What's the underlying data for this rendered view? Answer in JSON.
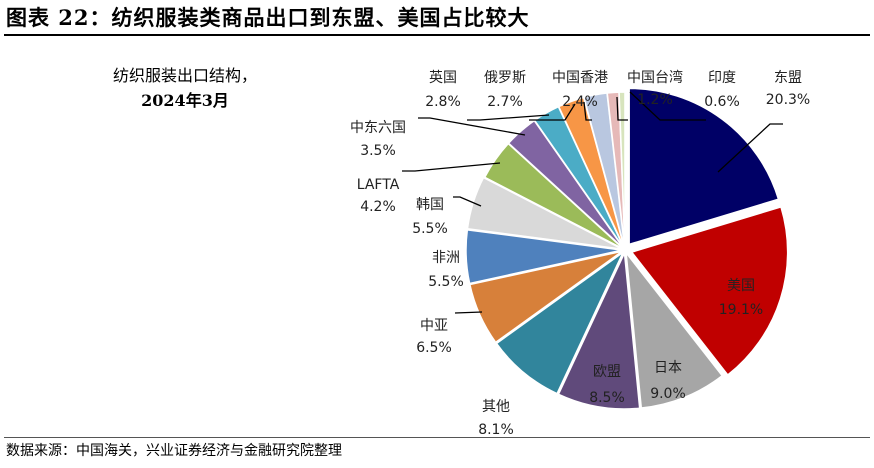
{
  "title": "图表 22：纺织服装类商品出口到东盟、美国占比较大",
  "source": "数据来源：中国海关，兴业证券经济与金融研究院整理",
  "chart_data": {
    "type": "pie",
    "title": "纺织服装出口结构，",
    "subtitle": "2024年3月",
    "unit": "%",
    "start": "top",
    "direction": "clockwise",
    "slices": [
      {
        "name": "东盟",
        "value": 20.3,
        "label": "20.3%",
        "color": "#000066"
      },
      {
        "name": "美国",
        "value": 19.1,
        "label": "19.1%",
        "color": "#c00000"
      },
      {
        "name": "日本",
        "value": 9.0,
        "label": "9.0%",
        "color": "#a6a6a6"
      },
      {
        "name": "欧盟",
        "value": 8.5,
        "label": "8.5%",
        "color": "#604a7b"
      },
      {
        "name": "其他",
        "value": 8.1,
        "label": "8.1%",
        "color": "#31859c"
      },
      {
        "name": "中亚",
        "value": 6.5,
        "label": "6.5%",
        "color": "#d7803a"
      },
      {
        "name": "非洲",
        "value": 5.5,
        "label": "5.5%",
        "color": "#4f81bd"
      },
      {
        "name": "韩国",
        "value": 5.5,
        "label": "5.5%",
        "color": "#d9d9d9"
      },
      {
        "name": "LAFTA",
        "value": 4.2,
        "label": "4.2%",
        "color": "#9bbb59"
      },
      {
        "name": "中东六国",
        "value": 3.5,
        "label": "3.5%",
        "color": "#8064a2"
      },
      {
        "name": "英国",
        "value": 2.8,
        "label": "2.8%",
        "color": "#4bacc6"
      },
      {
        "name": "俄罗斯",
        "value": 2.7,
        "label": "2.7%",
        "color": "#f79646"
      },
      {
        "name": "中国香港",
        "value": 2.4,
        "label": "2.4%",
        "color": "#b9c7e0"
      },
      {
        "name": "中国台湾",
        "value": 1.2,
        "label": "1.2%",
        "color": "#e6b9b8"
      },
      {
        "name": "印度",
        "value": 0.6,
        "label": "0.6%",
        "color": "#d7e4bd"
      }
    ]
  }
}
